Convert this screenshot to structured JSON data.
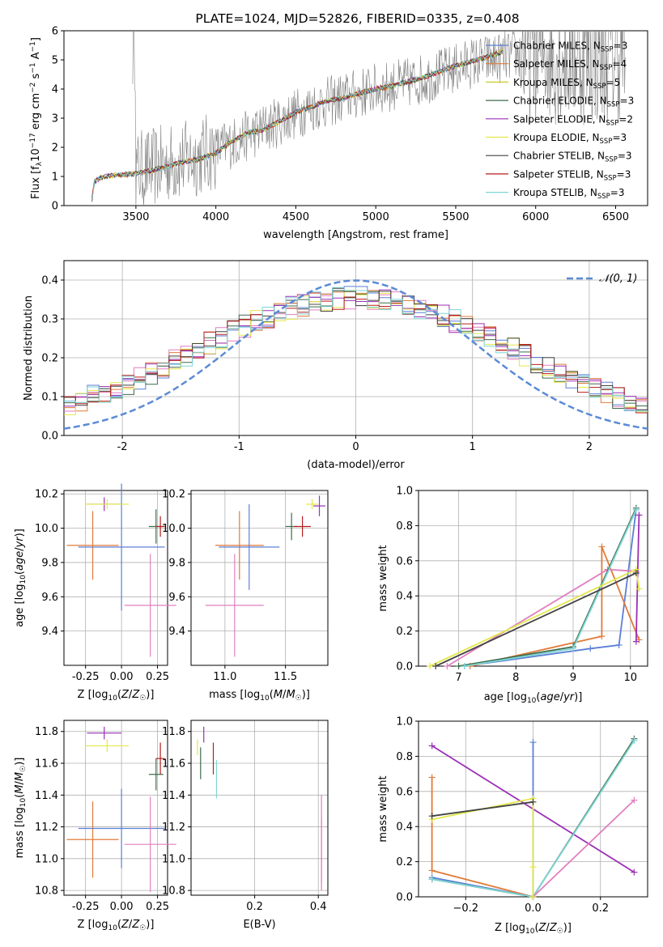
{
  "colors": {
    "c1": "#5b7fd6",
    "c2": "#e07b39",
    "c3": "#c9c926",
    "c4": "#3e6b4a",
    "c5": "#9b30b5",
    "c6": "#e3e84a",
    "c7": "#444444",
    "c8": "#b51f1f",
    "c9": "#7fd6d6",
    "pink": "#e07fbf",
    "dash": "#5b8ad6",
    "grid": "#b0b0b0"
  },
  "chart_data": [
    {
      "id": "spectrum",
      "type": "line",
      "title": "PLATE=1024, MJD=52826, FIBERID=0335, z=0.408",
      "xlabel": "wavelength [Angstrom, rest frame]",
      "ylabel": "Flux [f_λ10^-17 erg cm^-2 s^-1 A^-1]",
      "xlim": [
        3050,
        6700
      ],
      "ylim": [
        0,
        6
      ],
      "xticks": [
        3500,
        4000,
        4500,
        5000,
        5500,
        6000,
        6500
      ],
      "yticks": [
        0,
        1,
        2,
        3,
        4,
        5,
        6
      ],
      "grid": false,
      "legend_position": "top-right",
      "legend": [
        "Chabrier MILES, N_SSP=3",
        "Salpeter MILES, N_SSP=4",
        "Kroupa MILES, N_SSP=5",
        "Chabrier ELODIE, N_SSP=3",
        "Salpeter ELODIE, N_SSP=2",
        "Kroupa ELODIE, N_SSP=3",
        "Chabrier STELIB, N_SSP=3",
        "Salpeter STELIB, N_SSP=3",
        "Kroupa STELIB, N_SSP=3"
      ],
      "model_curve": {
        "x": [
          3220,
          3240,
          3260,
          3300,
          3400,
          3500,
          3600,
          3700,
          3800,
          3900,
          4000,
          4100,
          4200,
          4300,
          4400,
          4500,
          4600,
          4700,
          4800,
          4900,
          5000,
          5100,
          5200,
          5300,
          5400,
          5500,
          5600,
          5700,
          5800
        ],
        "y": [
          0,
          0.8,
          0.9,
          1.0,
          1.05,
          1.1,
          1.2,
          1.35,
          1.5,
          1.6,
          1.8,
          2.2,
          2.5,
          2.6,
          2.9,
          3.2,
          3.4,
          3.6,
          3.7,
          3.85,
          4.0,
          4.1,
          4.25,
          4.4,
          4.6,
          4.8,
          4.95,
          5.1,
          5.3
        ]
      },
      "data_curve": {
        "x": [
          3500,
          3600,
          3700,
          3800,
          3900,
          4000,
          4200,
          4400,
          4600,
          4800,
          5000,
          5200,
          5400,
          5600,
          5800,
          6000,
          6200,
          6400,
          6550
        ],
        "y": [
          1.2,
          1.3,
          1.45,
          1.55,
          1.7,
          1.9,
          2.4,
          2.9,
          3.4,
          3.7,
          4.0,
          4.2,
          4.5,
          4.9,
          5.1,
          5.3,
          5.2,
          5.2,
          5.3
        ]
      }
    },
    {
      "id": "residuals",
      "type": "line",
      "xlabel": "(data-model)/error",
      "ylabel": "Normed distribution",
      "xlim": [
        -2.5,
        2.5
      ],
      "ylim": [
        0,
        0.45
      ],
      "xticks": [
        -2,
        -1,
        0,
        1,
        2
      ],
      "yticks": [
        0.0,
        0.1,
        0.2,
        0.3,
        0.4
      ],
      "grid": true,
      "legend_position": "top-right",
      "legend": [
        "𝒩(0, 1)"
      ],
      "bins_start": -2.5,
      "bin_width": 0.1
    },
    {
      "id": "age_vs_Z",
      "type": "scatter",
      "xlabel": "Z [log10(Z/Z☉)]",
      "ylabel": "age  [log10(age/yr)]",
      "xlim": [
        -0.4,
        0.32
      ],
      "ylim": [
        9.2,
        10.22
      ],
      "xticks": [
        -0.25,
        0.0,
        0.25
      ],
      "yticks": [
        9.4,
        9.6,
        9.8,
        10.0,
        10.2
      ],
      "grid": true,
      "points": [
        {
          "c": "c2",
          "x": -0.2,
          "xe": 0.18,
          "y": 9.9,
          "ye": 0.2
        },
        {
          "c": "c1",
          "x": 0.0,
          "xe": 0.3,
          "y": 9.89,
          "ye": 0.37
        },
        {
          "c": "pink",
          "x": 0.2,
          "xe": 0.18,
          "y": 9.55,
          "ye": 0.3
        },
        {
          "c": "c4",
          "x": 0.24,
          "xe": 0.05,
          "y": 10.01,
          "ye": 0.1
        },
        {
          "c": "c5",
          "x": -0.12,
          "xe": 0.12,
          "y": 10.14,
          "ye": 0.04
        },
        {
          "c": "c6",
          "x": -0.1,
          "xe": 0.15,
          "y": 10.14,
          "ye": 0.03
        },
        {
          "c": "c8",
          "x": 0.27,
          "xe": 0.03,
          "y": 10.01,
          "ye": 0.06
        }
      ]
    },
    {
      "id": "age_vs_mass",
      "type": "scatter",
      "xlabel": "mass [log10(M/M☉)]",
      "ylabel": "",
      "xlim": [
        10.72,
        11.85
      ],
      "ylim": [
        9.2,
        10.22
      ],
      "xticks": [
        11.0,
        11.5
      ],
      "yticks": [
        9.4,
        9.6,
        9.8,
        10.0,
        10.2
      ],
      "grid": true,
      "points": [
        {
          "c": "c2",
          "x": 11.12,
          "xe": 0.2,
          "y": 9.9,
          "ye": 0.2
        },
        {
          "c": "c1",
          "x": 11.2,
          "xe": 0.25,
          "y": 9.89,
          "ye": 0.25
        },
        {
          "c": "pink",
          "x": 11.08,
          "xe": 0.24,
          "y": 9.55,
          "ye": 0.3
        },
        {
          "c": "c4",
          "x": 11.55,
          "xe": 0.05,
          "y": 10.01,
          "ye": 0.08
        },
        {
          "c": "c5",
          "x": 11.78,
          "xe": 0.05,
          "y": 10.13,
          "ye": 0.06
        },
        {
          "c": "c6",
          "x": 11.72,
          "xe": 0.05,
          "y": 10.14,
          "ye": 0.03
        },
        {
          "c": "c8",
          "x": 11.64,
          "xe": 0.07,
          "y": 10.01,
          "ye": 0.06
        }
      ]
    },
    {
      "id": "weight_vs_age",
      "type": "line",
      "xlabel": "age  [log10(age/yr)]",
      "ylabel": "mass weight",
      "xlim": [
        6.3,
        10.3
      ],
      "ylim": [
        0,
        1
      ],
      "xticks": [
        7,
        8,
        9,
        10
      ],
      "yticks": [
        0.0,
        0.2,
        0.4,
        0.6,
        0.8,
        1.0
      ],
      "grid": true,
      "series": [
        {
          "c": "c1",
          "x": [
            7.1,
            9.3,
            9.8,
            10.1
          ],
          "y": [
            0.0,
            0.1,
            0.12,
            0.89
          ]
        },
        {
          "c": "c2",
          "x": [
            7.2,
            9.5,
            9.5,
            10.15
          ],
          "y": [
            0.0,
            0.17,
            0.68,
            0.15
          ]
        },
        {
          "c": "pink",
          "x": [
            6.8,
            9.6,
            10.1
          ],
          "y": [
            0.0,
            0.55,
            0.54
          ]
        },
        {
          "c": "c4",
          "x": [
            7.0,
            9.0,
            10.1
          ],
          "y": [
            0.0,
            0.11,
            0.9
          ]
        },
        {
          "c": "c9",
          "x": [
            7.1,
            9.0,
            10.1
          ],
          "y": [
            0.0,
            0.1,
            0.89
          ]
        },
        {
          "c": "c5",
          "x": [
            10.1,
            10.15
          ],
          "y": [
            0.14,
            0.86
          ]
        },
        {
          "c": "c6",
          "x": [
            6.5,
            10.1,
            10.15
          ],
          "y": [
            0.0,
            0.55,
            0.44
          ]
        },
        {
          "c": "c7",
          "x": [
            6.6,
            10.1
          ],
          "y": [
            0.0,
            0.53
          ]
        }
      ]
    },
    {
      "id": "mass_vs_Z",
      "type": "scatter",
      "xlabel": "Z [log10(Z/Z☉)]",
      "ylabel": "mass [log10(M/M☉)]",
      "xlim": [
        -0.4,
        0.32
      ],
      "ylim": [
        10.77,
        11.87
      ],
      "xticks": [
        -0.25,
        0.0,
        0.25
      ],
      "yticks": [
        10.8,
        11.0,
        11.2,
        11.4,
        11.6,
        11.8
      ],
      "grid": true,
      "points": [
        {
          "c": "c2",
          "x": -0.2,
          "xe": 0.18,
          "y": 11.12,
          "ye": 0.24
        },
        {
          "c": "c1",
          "x": 0.0,
          "xe": 0.3,
          "y": 11.19,
          "ye": 0.25
        },
        {
          "c": "pink",
          "x": 0.2,
          "xe": 0.18,
          "y": 11.09,
          "ye": 0.3
        },
        {
          "c": "c4",
          "x": 0.24,
          "xe": 0.05,
          "y": 11.53,
          "ye": 0.1
        },
        {
          "c": "c5",
          "x": -0.12,
          "xe": 0.12,
          "y": 11.79,
          "ye": 0.04
        },
        {
          "c": "c6",
          "x": -0.1,
          "xe": 0.15,
          "y": 11.71,
          "ye": 0.04
        },
        {
          "c": "c8",
          "x": 0.27,
          "xe": 0.03,
          "y": 11.63,
          "ye": 0.1
        }
      ]
    },
    {
      "id": "mass_vs_ebv",
      "type": "scatter",
      "xlabel": "E(B-V)",
      "ylabel": "",
      "xlim": [
        0.0,
        0.43
      ],
      "ylim": [
        10.77,
        11.87
      ],
      "xticks": [
        0.2,
        0.4
      ],
      "yticks": [
        10.8,
        11.0,
        11.2,
        11.4,
        11.6,
        11.8
      ],
      "grid": true,
      "points": [
        {
          "c": "c5",
          "x": 0.04,
          "xe": 0.0,
          "y": 11.78,
          "ye": 0.05
        },
        {
          "c": "c4",
          "x": 0.03,
          "xe": 0.0,
          "y": 11.6,
          "ye": 0.1
        },
        {
          "c": "c6",
          "x": 0.02,
          "xe": 0.0,
          "y": 11.7,
          "ye": 0.05
        },
        {
          "c": "c8",
          "x": 0.07,
          "xe": 0.0,
          "y": 11.63,
          "ye": 0.1
        },
        {
          "c": "c9",
          "x": 0.08,
          "xe": 0.0,
          "y": 11.5,
          "ye": 0.12
        },
        {
          "c": "c2",
          "x": 0.41,
          "xe": 0.0,
          "y": 11.05,
          "ye": 0.2
        },
        {
          "c": "pink",
          "x": 0.41,
          "xe": 0.0,
          "y": 11.1,
          "ye": 0.3
        }
      ]
    },
    {
      "id": "weight_vs_Z",
      "type": "line",
      "xlabel": "Z [log10(Z/Z☉)]",
      "ylabel": "mass weight",
      "xlim": [
        -0.34,
        0.34
      ],
      "ylim": [
        0,
        1
      ],
      "xticks": [
        -0.2,
        0.0,
        0.2
      ],
      "yticks": [
        0.0,
        0.2,
        0.4,
        0.6,
        0.8,
        1.0
      ],
      "grid": true,
      "series": [
        {
          "c": "c5",
          "x": [
            -0.3,
            0.3
          ],
          "y": [
            0.86,
            0.14
          ]
        },
        {
          "c": "c2",
          "x": [
            -0.3,
            -0.3,
            0.0
          ],
          "y": [
            0.68,
            0.15,
            0.0
          ]
        },
        {
          "c": "c1",
          "x": [
            -0.3,
            0.0,
            0.0
          ],
          "y": [
            0.11,
            0.0,
            0.88
          ]
        },
        {
          "c": "c4",
          "x": [
            -0.3,
            0.0,
            0.3
          ],
          "y": [
            0.1,
            0.0,
            0.9
          ]
        },
        {
          "c": "c9",
          "x": [
            -0.3,
            0.0,
            0.3
          ],
          "y": [
            0.1,
            0.0,
            0.89
          ]
        },
        {
          "c": "pink",
          "x": [
            0.0,
            0.3
          ],
          "y": [
            0.0,
            0.55
          ]
        },
        {
          "c": "c6",
          "x": [
            -0.3,
            0.0,
            0.0,
            0.0
          ],
          "y": [
            0.44,
            0.56,
            0.17,
            0.0
          ]
        },
        {
          "c": "c7",
          "x": [
            -0.3,
            0.0
          ],
          "y": [
            0.46,
            0.54
          ]
        }
      ]
    }
  ]
}
